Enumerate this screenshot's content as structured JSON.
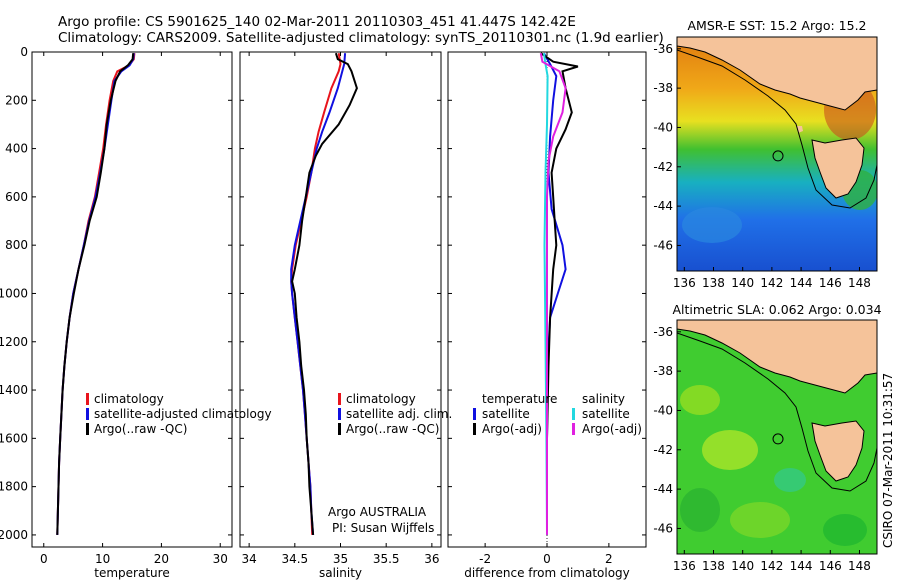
{
  "header": {
    "line1": "Argo profile: CS 5901625_140 02-Mar-2011 20110303_451 41.447S 142.42E",
    "line2": "Climatology: CARS2009. Satellite-adjusted climatology: synTS_20110301.nc (1.9d earlier)"
  },
  "side_label": "CSIRO 07-Mar-2011 10:31:57",
  "annotation": {
    "line1": "Argo AUSTRALIA",
    "line2": "PI: Susan Wijffels"
  },
  "colors": {
    "climatology": "#e8141c",
    "satellite": "#1010e0",
    "argo": "#000000",
    "salinity_satellite": "#22d8e0",
    "salinity_argo": "#e020e0",
    "land": "#f5c39a"
  },
  "chart_data": [
    {
      "type": "line",
      "xlabel": "temperature",
      "xlim": [
        -2,
        32
      ],
      "xticks": [
        0,
        10,
        20,
        30
      ],
      "ylim": [
        0,
        2050
      ],
      "yticks": [
        0,
        200,
        400,
        600,
        800,
        1000,
        1200,
        1400,
        1600,
        1800,
        2000
      ],
      "y_reversed": true,
      "legend": [
        "climatology",
        "satellite-adjusted climatology",
        "Argo(..raw -QC)"
      ],
      "series": [
        {
          "name": "climatology",
          "color": "#e8141c",
          "points": [
            [
              15.4,
              5
            ],
            [
              15.3,
              30
            ],
            [
              14.5,
              55
            ],
            [
              12.5,
              80
            ],
            [
              11.8,
              120
            ],
            [
              11.2,
              200
            ],
            [
              10.6,
              300
            ],
            [
              10.1,
              400
            ],
            [
              9.4,
              500
            ],
            [
              8.7,
              600
            ],
            [
              7.6,
              700
            ],
            [
              6.8,
              800
            ],
            [
              5.9,
              900
            ],
            [
              5.0,
              1000
            ],
            [
              4.4,
              1100
            ],
            [
              3.9,
              1200
            ],
            [
              3.5,
              1300
            ],
            [
              3.2,
              1400
            ],
            [
              3.0,
              1500
            ],
            [
              2.8,
              1600
            ],
            [
              2.6,
              1700
            ],
            [
              2.5,
              1800
            ],
            [
              2.4,
              1900
            ],
            [
              2.3,
              2000
            ]
          ]
        },
        {
          "name": "satellite-adjusted climatology",
          "color": "#1010e0",
          "points": [
            [
              15.3,
              5
            ],
            [
              15.2,
              30
            ],
            [
              14.6,
              55
            ],
            [
              13.2,
              80
            ],
            [
              12.0,
              120
            ],
            [
              11.5,
              200
            ],
            [
              10.9,
              300
            ],
            [
              10.3,
              400
            ],
            [
              9.6,
              500
            ],
            [
              8.8,
              600
            ],
            [
              7.7,
              700
            ],
            [
              6.8,
              800
            ],
            [
              5.9,
              900
            ],
            [
              5.0,
              1000
            ],
            [
              4.4,
              1100
            ],
            [
              3.9,
              1200
            ],
            [
              3.5,
              1300
            ],
            [
              3.2,
              1400
            ],
            [
              3.0,
              1500
            ],
            [
              2.8,
              1600
            ],
            [
              2.6,
              1700
            ],
            [
              2.5,
              1800
            ],
            [
              2.4,
              1900
            ],
            [
              2.3,
              2000
            ]
          ]
        },
        {
          "name": "Argo(..raw -QC)",
          "color": "#000000",
          "points": [
            [
              15.2,
              5
            ],
            [
              15.1,
              30
            ],
            [
              14.3,
              55
            ],
            [
              13.0,
              80
            ],
            [
              12.2,
              120
            ],
            [
              11.4,
              200
            ],
            [
              10.7,
              300
            ],
            [
              10.3,
              400
            ],
            [
              9.7,
              500
            ],
            [
              9.0,
              600
            ],
            [
              7.8,
              700
            ],
            [
              6.9,
              800
            ],
            [
              5.9,
              900
            ],
            [
              5.1,
              1000
            ],
            [
              4.4,
              1100
            ],
            [
              3.9,
              1200
            ],
            [
              3.5,
              1300
            ],
            [
              3.2,
              1400
            ],
            [
              3.0,
              1500
            ],
            [
              2.8,
              1600
            ],
            [
              2.6,
              1700
            ],
            [
              2.5,
              1800
            ],
            [
              2.4,
              1900
            ],
            [
              2.3,
              2000
            ]
          ]
        }
      ]
    },
    {
      "type": "line",
      "xlabel": "salinity",
      "xlim": [
        33.9,
        36.1
      ],
      "xticks": [
        34,
        34.5,
        35,
        35.5,
        36
      ],
      "xtick_labels": [
        "34",
        "34.5",
        "35",
        "35.5",
        "36"
      ],
      "ylim": [
        0,
        2050
      ],
      "y_reversed": true,
      "legend": [
        "climatology",
        "satellite adj. clim.",
        "Argo(..raw -QC)"
      ],
      "series": [
        {
          "name": "climatology",
          "color": "#e8141c",
          "points": [
            [
              34.98,
              5
            ],
            [
              35.0,
              50
            ],
            [
              34.98,
              80
            ],
            [
              34.9,
              150
            ],
            [
              34.82,
              250
            ],
            [
              34.76,
              330
            ],
            [
              34.72,
              400
            ],
            [
              34.68,
              500
            ],
            [
              34.63,
              600
            ],
            [
              34.57,
              700
            ],
            [
              34.51,
              800
            ],
            [
              34.47,
              900
            ],
            [
              34.46,
              950
            ],
            [
              34.47,
              1000
            ],
            [
              34.5,
              1100
            ],
            [
              34.53,
              1200
            ],
            [
              34.56,
              1300
            ],
            [
              34.59,
              1400
            ],
            [
              34.61,
              1500
            ],
            [
              34.63,
              1600
            ],
            [
              34.65,
              1700
            ],
            [
              34.67,
              1800
            ],
            [
              34.68,
              1900
            ],
            [
              34.69,
              2000
            ]
          ]
        },
        {
          "name": "satellite adj. clim.",
          "color": "#1010e0",
          "points": [
            [
              35.05,
              5
            ],
            [
              35.04,
              50
            ],
            [
              35.02,
              80
            ],
            [
              34.97,
              150
            ],
            [
              34.88,
              250
            ],
            [
              34.8,
              330
            ],
            [
              34.74,
              400
            ],
            [
              34.68,
              500
            ],
            [
              34.62,
              600
            ],
            [
              34.56,
              700
            ],
            [
              34.5,
              800
            ],
            [
              34.46,
              900
            ],
            [
              34.46,
              950
            ],
            [
              34.47,
              1000
            ],
            [
              34.5,
              1100
            ],
            [
              34.53,
              1200
            ],
            [
              34.56,
              1300
            ],
            [
              34.59,
              1400
            ],
            [
              34.61,
              1500
            ],
            [
              34.63,
              1600
            ],
            [
              34.65,
              1700
            ],
            [
              34.67,
              1800
            ],
            [
              34.68,
              1900
            ],
            [
              34.7,
              2000
            ]
          ]
        },
        {
          "name": "Argo(..raw -QC)",
          "color": "#000000",
          "points": [
            [
              34.95,
              5
            ],
            [
              34.97,
              30
            ],
            [
              35.08,
              50
            ],
            [
              35.12,
              80
            ],
            [
              35.18,
              150
            ],
            [
              35.1,
              220
            ],
            [
              34.98,
              300
            ],
            [
              34.8,
              380
            ],
            [
              34.73,
              430
            ],
            [
              34.66,
              500
            ],
            [
              34.62,
              600
            ],
            [
              34.58,
              700
            ],
            [
              34.55,
              800
            ],
            [
              34.5,
              900
            ],
            [
              34.47,
              950
            ],
            [
              34.5,
              1000
            ],
            [
              34.52,
              1100
            ],
            [
              34.55,
              1200
            ],
            [
              34.57,
              1300
            ],
            [
              34.6,
              1400
            ],
            [
              34.62,
              1500
            ],
            [
              34.63,
              1600
            ],
            [
              34.65,
              1700
            ],
            [
              34.66,
              1800
            ],
            [
              34.68,
              1900
            ],
            [
              34.7,
              2000
            ]
          ]
        }
      ]
    },
    {
      "type": "line",
      "xlabel": "difference from climatology",
      "xlim": [
        -3.2,
        3.2
      ],
      "xticks": [
        -2,
        0,
        2
      ],
      "ylim": [
        0,
        2050
      ],
      "y_reversed": true,
      "zero_line": true,
      "legend_groups": [
        {
          "title": "temperature",
          "entries": [
            "satellite",
            "Argo(-adj)"
          ]
        },
        {
          "title": "salinity",
          "entries": [
            "satellite",
            "Argo(-adj)"
          ]
        }
      ],
      "series": [
        {
          "name": "temperature satellite",
          "color": "#1010e0",
          "points": [
            [
              -0.1,
              5
            ],
            [
              0.1,
              50
            ],
            [
              0.3,
              100
            ],
            [
              0.2,
              200
            ],
            [
              0.1,
              350
            ],
            [
              0.05,
              500
            ],
            [
              0.15,
              650
            ],
            [
              0.5,
              800
            ],
            [
              0.6,
              900
            ],
            [
              0.35,
              1000
            ],
            [
              0.1,
              1100
            ],
            [
              0.02,
              1300
            ],
            [
              0.0,
              1600
            ],
            [
              0.0,
              2000
            ]
          ]
        },
        {
          "name": "temperature Argo(-adj)",
          "color": "#000000",
          "points": [
            [
              -0.2,
              5
            ],
            [
              0.2,
              40
            ],
            [
              1.0,
              60
            ],
            [
              0.5,
              80
            ],
            [
              0.6,
              150
            ],
            [
              0.8,
              250
            ],
            [
              0.6,
              320
            ],
            [
              0.3,
              400
            ],
            [
              0.15,
              500
            ],
            [
              0.2,
              600
            ],
            [
              0.25,
              700
            ],
            [
              0.3,
              800
            ],
            [
              0.2,
              900
            ],
            [
              0.1,
              1100
            ],
            [
              0.05,
              1300
            ],
            [
              0.0,
              1600
            ],
            [
              0.0,
              2000
            ]
          ]
        },
        {
          "name": "salinity satellite",
          "color": "#22d8e0",
          "points": [
            [
              -0.1,
              5
            ],
            [
              -0.05,
              50
            ],
            [
              0.02,
              100
            ],
            [
              0.0,
              300
            ],
            [
              -0.05,
              500
            ],
            [
              -0.08,
              800
            ],
            [
              -0.05,
              1200
            ],
            [
              -0.02,
              1600
            ],
            [
              0.0,
              2000
            ]
          ]
        },
        {
          "name": "salinity Argo(-adj)",
          "color": "#e020e0",
          "points": [
            [
              -0.2,
              5
            ],
            [
              -0.15,
              40
            ],
            [
              0.4,
              80
            ],
            [
              0.6,
              150
            ],
            [
              0.5,
              250
            ],
            [
              0.2,
              350
            ],
            [
              0.05,
              450
            ],
            [
              0.0,
              600
            ],
            [
              0.0,
              1000
            ],
            [
              0.0,
              1600
            ],
            [
              0.0,
              2000
            ]
          ]
        }
      ]
    },
    {
      "type": "heatmap",
      "title": "AMSR-E SST: 15.2 Argo: 15.2",
      "xlim": [
        135.5,
        149.2
      ],
      "xticks": [
        136,
        138,
        140,
        142,
        144,
        146,
        148
      ],
      "ylim": [
        -47.3,
        -35.4
      ],
      "yticks": [
        -36,
        -38,
        -40,
        -42,
        -44,
        -46
      ],
      "float_position": [
        142.42,
        -41.447
      ]
    },
    {
      "type": "heatmap",
      "title": "Altimetric SLA: 0.062 Argo: 0.034",
      "xlim": [
        135.5,
        149.2
      ],
      "xticks": [
        136,
        138,
        140,
        142,
        144,
        146,
        148
      ],
      "ylim": [
        -47.3,
        -35.4
      ],
      "yticks": [
        -36,
        -38,
        -40,
        -42,
        -44,
        -46
      ],
      "float_position": [
        142.42,
        -41.447
      ]
    }
  ]
}
